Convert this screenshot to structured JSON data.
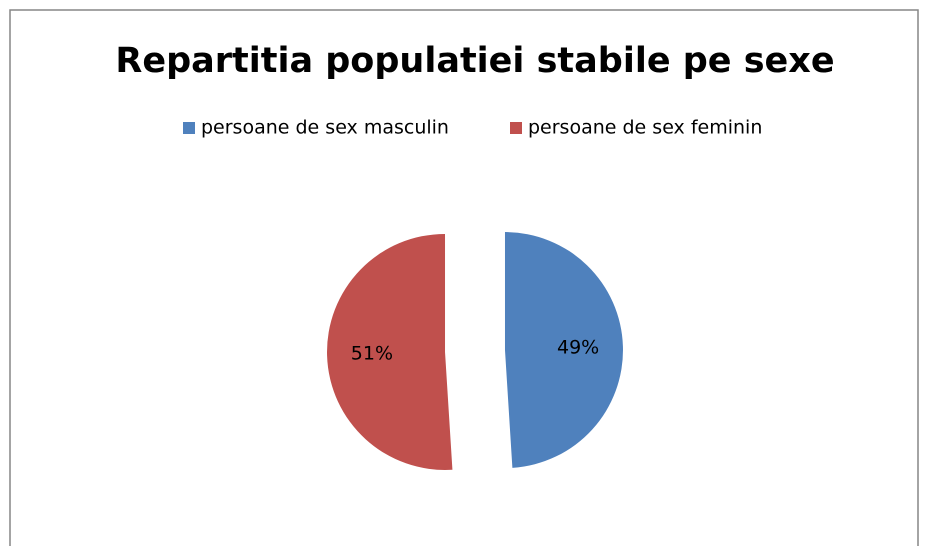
{
  "chart_data": {
    "type": "pie",
    "title": "Repartitia populatiei stabile pe sexe",
    "categories": [
      "persoane de sex masculin",
      "persoane de sex feminin"
    ],
    "values": [
      49,
      51
    ],
    "value_labels": [
      "49%",
      "51%"
    ],
    "colors": [
      "#4f81bd",
      "#c0504d"
    ],
    "legend": "top",
    "exploded": true
  }
}
